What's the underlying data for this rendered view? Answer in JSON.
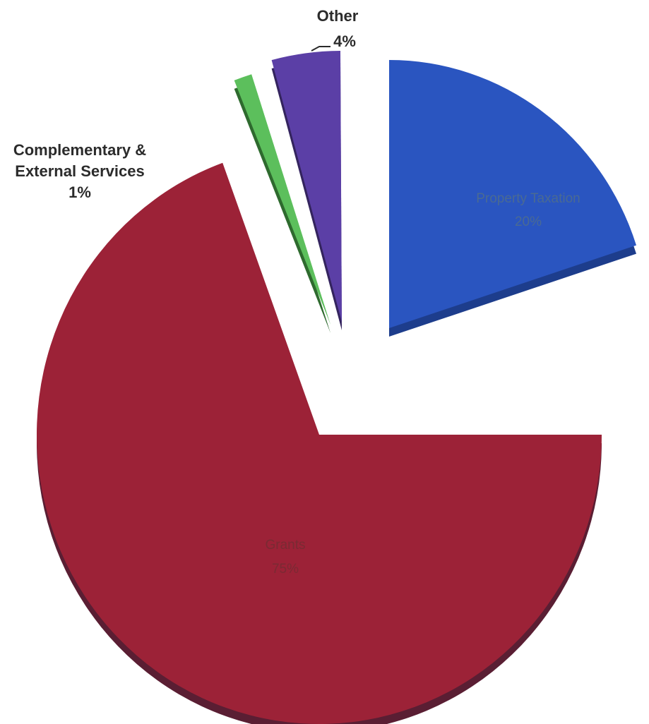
{
  "chart_data": {
    "type": "pie",
    "exploded": true,
    "three_d": true,
    "slices": [
      {
        "label": "Property Taxation",
        "value": 20,
        "percent_label": "20%",
        "color": "#2a55c0",
        "side_color": "#1d3d8c",
        "label_color": "#4a6a93"
      },
      {
        "label": "Grants",
        "value": 75,
        "percent_label": "75%",
        "color": "#9c2237",
        "side_color": "#5a1e33",
        "label_color": "#7a2a33"
      },
      {
        "label": "Complementary & External Services",
        "label_lines": [
          "Complementary &",
          "External Services"
        ],
        "value": 1,
        "percent_label": "1%",
        "color": "#5cbf5c",
        "side_color": "#2e6a2e",
        "label_color": "#2b2b2b"
      },
      {
        "label": "Other",
        "value": 4,
        "percent_label": "4%",
        "color": "#5b3fa6",
        "side_color": "#34245e",
        "label_color": "#2b2b2b"
      }
    ]
  }
}
